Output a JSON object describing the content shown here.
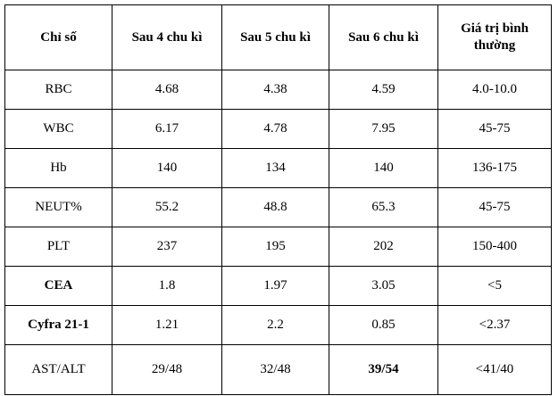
{
  "table": {
    "header": [
      "Chỉ số",
      "Sau 4 chu kì",
      "Sau 5 chu kì",
      "Sau 6 chu kì",
      "Giá trị bình thường"
    ],
    "rows": [
      [
        "RBC",
        "4.68",
        "4.38",
        "4.59",
        "4.0-10.0"
      ],
      [
        "WBC",
        "6.17",
        "4.78",
        "7.95",
        "45-75"
      ],
      [
        "Hb",
        "140",
        "134",
        "140",
        "136-175"
      ],
      [
        "NEUT%",
        "55.2",
        "48.8",
        "65.3",
        "45-75"
      ],
      [
        "PLT",
        "237",
        "195",
        "202",
        "150-400"
      ],
      [
        "CEA",
        "1.8",
        "1.97",
        "3.05",
        "<5"
      ],
      [
        "Cyfra 21-1",
        "1.21",
        "2.2",
        "0.85",
        "<2.37"
      ],
      [
        "AST/ALT",
        "29/48",
        "32/48",
        "39/54",
        "<41/40"
      ]
    ]
  }
}
